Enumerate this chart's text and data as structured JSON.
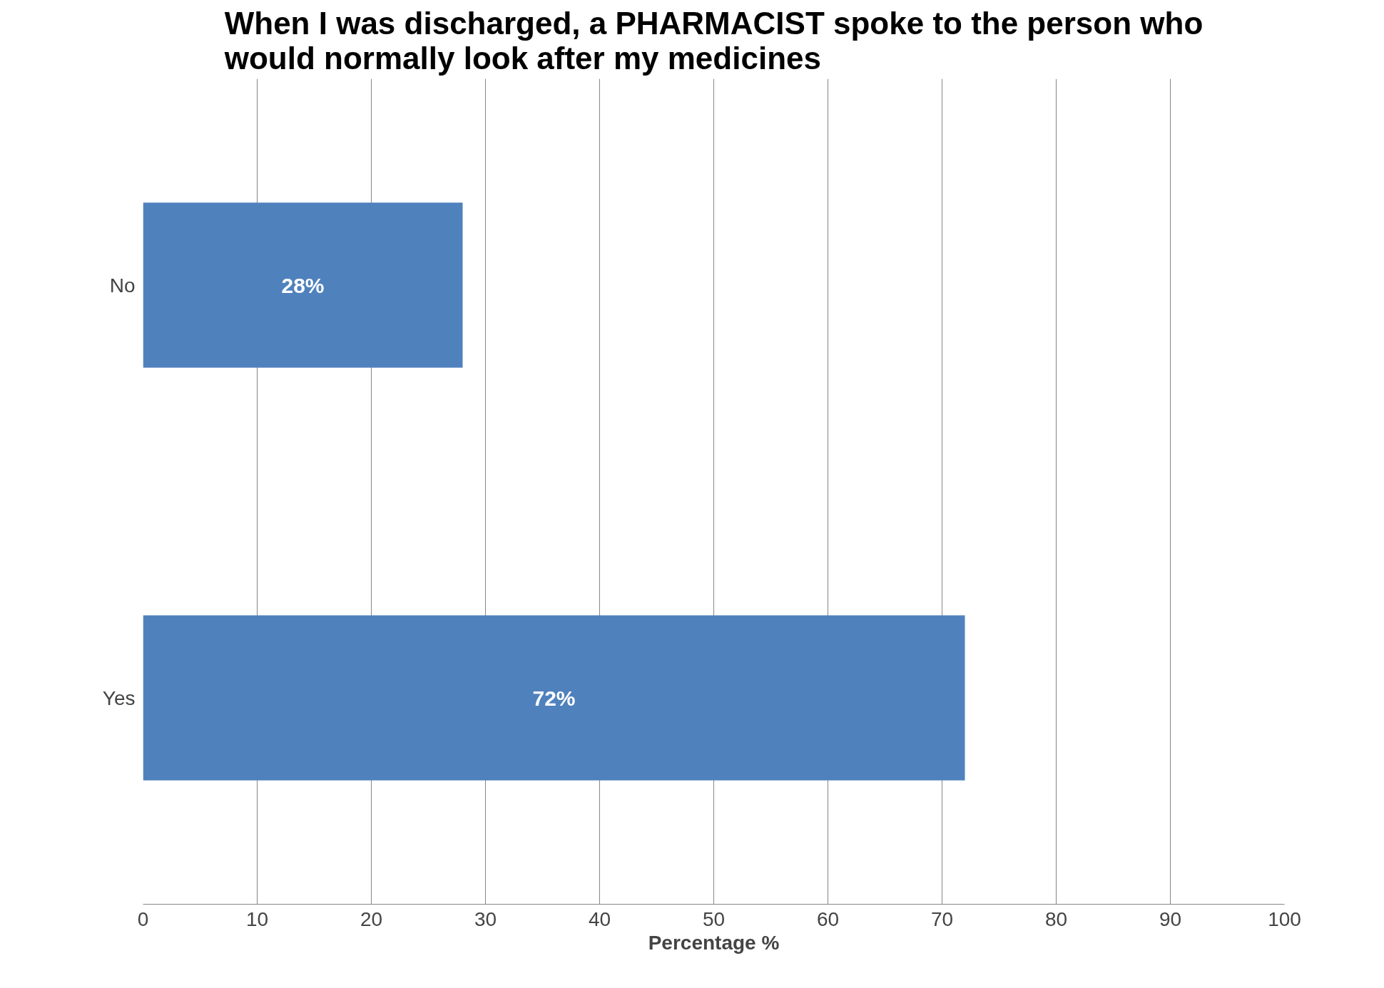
{
  "chart_data": {
    "type": "bar",
    "orientation": "horizontal",
    "title": "When I was discharged, a PHARMACIST spoke to the person who would normally look after my medicines",
    "xlabel": "Percentage %",
    "categories": [
      "No",
      "Yes"
    ],
    "values": [
      28,
      72
    ],
    "value_labels": [
      "28%",
      "72%"
    ],
    "color": "#4f81bd",
    "xlim": [
      0,
      100
    ],
    "xticks": [
      0,
      10,
      20,
      30,
      40,
      50,
      60,
      70,
      80,
      90,
      100
    ],
    "grid": "x"
  }
}
